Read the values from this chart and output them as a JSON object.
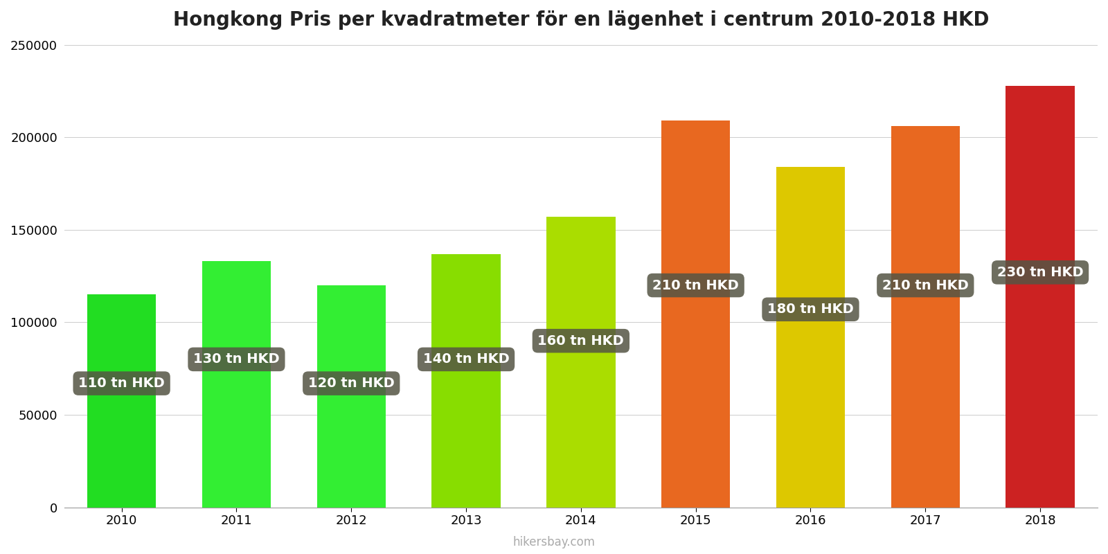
{
  "title": "Hongkong Pris per kvadratmeter för en lägenhet i centrum 2010-2018 HKD",
  "years": [
    2010,
    2011,
    2012,
    2013,
    2014,
    2015,
    2016,
    2017,
    2018
  ],
  "values": [
    115000,
    133000,
    120000,
    137000,
    157000,
    209000,
    184000,
    206000,
    228000
  ],
  "labels": [
    "110 tn HKD",
    "130 tn HKD",
    "120 tn HKD",
    "140 tn HKD",
    "160 tn HKD",
    "210 tn HKD",
    "180 tn HKD",
    "210 tn HKD",
    "230 tn HKD"
  ],
  "label_y_positions": [
    67000,
    80000,
    67000,
    80000,
    90000,
    120000,
    107000,
    120000,
    127000
  ],
  "bar_colors": [
    "#22dd22",
    "#33ee33",
    "#33ee33",
    "#88dd00",
    "#aadd00",
    "#e86820",
    "#ddc800",
    "#e86820",
    "#cc2222"
  ],
  "ylim": [
    0,
    250000
  ],
  "yticks": [
    0,
    50000,
    100000,
    150000,
    200000,
    250000
  ],
  "background_color": "#ffffff",
  "watermark": "hikersbay.com",
  "title_fontsize": 20,
  "label_fontsize": 14,
  "label_bg_color": "#555544",
  "label_text_color": "#ffffff",
  "bar_width": 0.6
}
